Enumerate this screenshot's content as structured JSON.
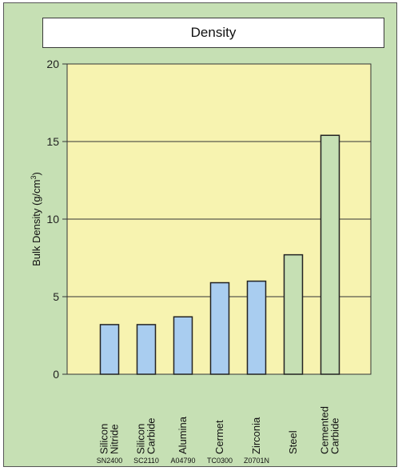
{
  "chart_data": {
    "type": "bar",
    "title": "Density",
    "xlabel": "",
    "ylabel": "Bulk Density (g/cm",
    "ylabel_sup": "3",
    "ylabel_end": ")",
    "ylim": [
      0,
      20
    ],
    "yticks": [
      0,
      5,
      10,
      15,
      20
    ],
    "grid": true,
    "categories": [
      {
        "lines": [
          "Silicon",
          "Nitride"
        ],
        "grade": "SN2400"
      },
      {
        "lines": [
          "Silicon",
          "Carbide"
        ],
        "grade": "SC2110"
      },
      {
        "lines": [
          "Alumina"
        ],
        "grade": "A04790"
      },
      {
        "lines": [
          "Cermet"
        ],
        "grade": "TC0300"
      },
      {
        "lines": [
          "Zirconia"
        ],
        "grade": "Z0701N"
      },
      {
        "lines": [
          "Steel"
        ],
        "grade": ""
      },
      {
        "lines": [
          "Cemented",
          "Carbide"
        ],
        "grade": ""
      }
    ],
    "values": [
      3.2,
      3.2,
      3.7,
      5.9,
      6.0,
      7.7,
      15.4
    ],
    "bar_colors": [
      "#a9cdf0",
      "#a9cdf0",
      "#a9cdf0",
      "#a9cdf0",
      "#a9cdf0",
      "#c6e0b4",
      "#c6e0b4"
    ],
    "plot_background": "#f7f3b0",
    "frame_background": "#c6e0b4"
  }
}
